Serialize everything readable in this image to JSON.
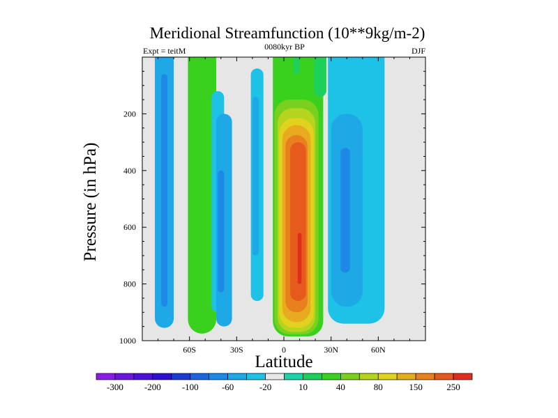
{
  "chart_data": {
    "type": "contour",
    "title": "Meridional Streamfunction (10**9kg/m-2)",
    "left_string": "Expt = teitM",
    "center_string": "0080kyr BP",
    "right_string": "DJF",
    "xlabel": "Latitude",
    "ylabel": "Pressure (in hPa)",
    "xlim": [
      -90,
      90
    ],
    "ylim": [
      0,
      1000
    ],
    "y_inverted": true,
    "x_ticks": [
      {
        "value": -60,
        "label": "60S"
      },
      {
        "value": -30,
        "label": "30S"
      },
      {
        "value": 0,
        "label": "0"
      },
      {
        "value": 30,
        "label": "30N"
      },
      {
        "value": 60,
        "label": "60N"
      }
    ],
    "y_ticks": [
      {
        "value": 200,
        "label": "200"
      },
      {
        "value": 400,
        "label": "400"
      },
      {
        "value": 600,
        "label": "600"
      },
      {
        "value": 800,
        "label": "800"
      },
      {
        "value": 1000,
        "label": "1000"
      }
    ],
    "missing_color": "#e6e6e6",
    "colorbar": {
      "colors": [
        "#8a1ce6",
        "#6a16dc",
        "#4c10d6",
        "#2e10d0",
        "#1a3ad0",
        "#1a66dc",
        "#1e88e6",
        "#1ea8e6",
        "#1ec2e6",
        "#e8e8e8",
        "#1ed2a8",
        "#1ecf5a",
        "#3ad01e",
        "#7ad01e",
        "#b4d41e",
        "#e0d21e",
        "#e8aa1e",
        "#e8801e",
        "#e65a1e",
        "#e02e1e"
      ],
      "labels": [
        {
          "after_box": 1,
          "text": "-300"
        },
        {
          "after_box": 3,
          "text": "-200"
        },
        {
          "after_box": 5,
          "text": "-100"
        },
        {
          "after_box": 7,
          "text": "-60"
        },
        {
          "after_box": 9,
          "text": "-20"
        },
        {
          "after_box": 11,
          "text": "10"
        },
        {
          "after_box": 13,
          "text": "40"
        },
        {
          "after_box": 15,
          "text": "80"
        },
        {
          "after_box": 17,
          "text": "150"
        },
        {
          "after_box": 19,
          "text": "250"
        }
      ]
    },
    "cells": [
      {
        "level": 7,
        "lat_center": -76,
        "lat_half_width": 6,
        "p_top": 0,
        "p_bottom": 955
      },
      {
        "level": 6,
        "lat_center": -76,
        "lat_half_width": 2,
        "p_top": 60,
        "p_bottom": 880
      },
      {
        "level": 12,
        "lat_center": -52,
        "lat_half_width": 9,
        "p_top": 0,
        "p_bottom": 975
      },
      {
        "level": 8,
        "lat_center": -42,
        "lat_half_width": 4,
        "p_top": 120,
        "p_bottom": 900
      },
      {
        "level": 7,
        "lat_center": -38,
        "lat_half_width": 5,
        "p_top": 200,
        "p_bottom": 950
      },
      {
        "level": 6,
        "lat_center": -40,
        "lat_half_width": 2,
        "p_top": 400,
        "p_bottom": 830
      },
      {
        "level": 8,
        "lat_center": -17,
        "lat_half_width": 4,
        "p_top": 40,
        "p_bottom": 860
      },
      {
        "level": 7,
        "lat_center": -18,
        "lat_half_width": 2,
        "p_top": 140,
        "p_bottom": 700
      },
      {
        "level": 12,
        "lat_center": 9,
        "lat_half_width": 16,
        "p_top": 0,
        "p_bottom": 985
      },
      {
        "level": 11,
        "lat_center": 8,
        "lat_half_width": 2,
        "p_top": 0,
        "p_bottom": 60
      },
      {
        "level": 13,
        "lat_center": 8,
        "lat_half_width": 14,
        "p_top": 150,
        "p_bottom": 978
      },
      {
        "level": 14,
        "lat_center": 8,
        "lat_half_width": 12,
        "p_top": 180,
        "p_bottom": 970
      },
      {
        "level": 15,
        "lat_center": 8,
        "lat_half_width": 11,
        "p_top": 215,
        "p_bottom": 955
      },
      {
        "level": 16,
        "lat_center": 8,
        "lat_half_width": 9,
        "p_top": 240,
        "p_bottom": 935
      },
      {
        "level": 17,
        "lat_center": 8,
        "lat_half_width": 7,
        "p_top": 275,
        "p_bottom": 900
      },
      {
        "level": 18,
        "lat_center": 9,
        "lat_half_width": 5,
        "p_top": 300,
        "p_bottom": 860
      },
      {
        "level": 19,
        "lat_center": 10,
        "lat_half_width": 1.2,
        "p_top": 620,
        "p_bottom": 800
      },
      {
        "level": 8,
        "lat_center": 46,
        "lat_half_width": 18,
        "p_top": 0,
        "p_bottom": 940
      },
      {
        "level": 7,
        "lat_center": 40,
        "lat_half_width": 10,
        "p_top": 200,
        "p_bottom": 880
      },
      {
        "level": 6,
        "lat_center": 39,
        "lat_half_width": 3,
        "p_top": 320,
        "p_bottom": 760
      },
      {
        "level": 11,
        "lat_center": 23,
        "lat_half_width": 4,
        "p_top": 0,
        "p_bottom": 140
      }
    ]
  }
}
